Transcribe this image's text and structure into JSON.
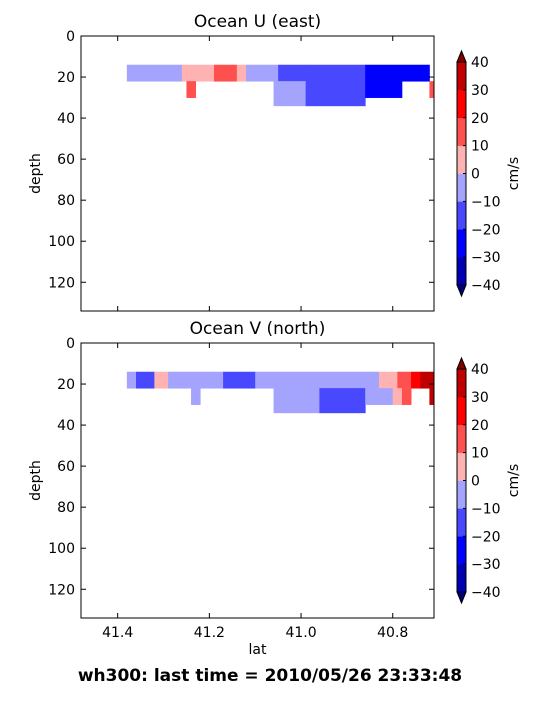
{
  "figure_title": "wh300: last time = 2010/05/26 23:33:48",
  "chart_data": [
    {
      "type": "heatmap",
      "title": "Ocean U (east)",
      "xlabel": "",
      "ylabel": "depth",
      "xlim": [
        41.48,
        40.71
      ],
      "ylim": [
        134,
        0
      ],
      "xticks": [],
      "yticks": [
        0,
        20,
        40,
        60,
        80,
        100,
        120
      ],
      "colorbar": {
        "label": "cm/s",
        "levels": [
          -40,
          -30,
          -20,
          -10,
          0,
          10,
          20,
          30,
          40
        ],
        "ticks": [
          40,
          30,
          20,
          10,
          0,
          -10,
          -20,
          -30,
          -40
        ],
        "colors": [
          "#0000b2",
          "#0000ff",
          "#4848ff",
          "#a4a4ff",
          "#ffb2b2",
          "#ff5050",
          "#ff0000",
          "#c00000"
        ],
        "extend": "both"
      },
      "cells": [
        {
          "x0": 41.38,
          "x1": 41.26,
          "d0": 14,
          "d1": 22,
          "level": 3
        },
        {
          "x0": 41.26,
          "x1": 41.19,
          "d0": 14,
          "d1": 22,
          "level": 4
        },
        {
          "x0": 41.19,
          "x1": 41.14,
          "d0": 14,
          "d1": 22,
          "level": 5
        },
        {
          "x0": 41.14,
          "x1": 41.12,
          "d0": 14,
          "d1": 22,
          "level": 4
        },
        {
          "x0": 41.12,
          "x1": 41.05,
          "d0": 14,
          "d1": 22,
          "level": 3
        },
        {
          "x0": 41.05,
          "x1": 40.99,
          "d0": 14,
          "d1": 22,
          "level": 2
        },
        {
          "x0": 40.99,
          "x1": 40.86,
          "d0": 14,
          "d1": 22,
          "level": 2
        },
        {
          "x0": 40.86,
          "x1": 40.72,
          "d0": 14,
          "d1": 22,
          "level": 1
        },
        {
          "x0": 41.25,
          "x1": 41.23,
          "d0": 22,
          "d1": 30,
          "level": 5
        },
        {
          "x0": 41.06,
          "x1": 40.99,
          "d0": 22,
          "d1": 34,
          "level": 3
        },
        {
          "x0": 40.99,
          "x1": 40.86,
          "d0": 22,
          "d1": 34,
          "level": 2
        },
        {
          "x0": 40.86,
          "x1": 40.78,
          "d0": 22,
          "d1": 30,
          "level": 1
        },
        {
          "x0": 40.72,
          "x1": 40.71,
          "d0": 22,
          "d1": 30,
          "level": 5
        }
      ]
    },
    {
      "type": "heatmap",
      "title": "Ocean V (north)",
      "xlabel": "lat",
      "ylabel": "depth",
      "xlim": [
        41.48,
        40.71
      ],
      "ylim": [
        134,
        0
      ],
      "xticks": [
        41.4,
        41.2,
        41.0,
        40.8
      ],
      "yticks": [
        0,
        20,
        40,
        60,
        80,
        100,
        120
      ],
      "colorbar": {
        "label": "cm/s",
        "levels": [
          -40,
          -30,
          -20,
          -10,
          0,
          10,
          20,
          30,
          40
        ],
        "ticks": [
          40,
          30,
          20,
          10,
          0,
          -10,
          -20,
          -30,
          -40
        ],
        "colors": [
          "#0000b2",
          "#0000ff",
          "#4848ff",
          "#a4a4ff",
          "#ffb2b2",
          "#ff5050",
          "#ff0000",
          "#c00000"
        ],
        "extend": "both"
      },
      "cells": [
        {
          "x0": 41.38,
          "x1": 41.36,
          "d0": 14,
          "d1": 22,
          "level": 3
        },
        {
          "x0": 41.36,
          "x1": 41.32,
          "d0": 14,
          "d1": 22,
          "level": 2
        },
        {
          "x0": 41.32,
          "x1": 41.29,
          "d0": 14,
          "d1": 22,
          "level": 4
        },
        {
          "x0": 41.29,
          "x1": 41.17,
          "d0": 14,
          "d1": 22,
          "level": 3
        },
        {
          "x0": 41.17,
          "x1": 41.1,
          "d0": 14,
          "d1": 22,
          "level": 2
        },
        {
          "x0": 41.1,
          "x1": 41.08,
          "d0": 14,
          "d1": 22,
          "level": 3
        },
        {
          "x0": 41.08,
          "x1": 40.83,
          "d0": 14,
          "d1": 22,
          "level": 3
        },
        {
          "x0": 40.83,
          "x1": 40.79,
          "d0": 14,
          "d1": 22,
          "level": 4
        },
        {
          "x0": 40.79,
          "x1": 40.76,
          "d0": 14,
          "d1": 22,
          "level": 5
        },
        {
          "x0": 40.76,
          "x1": 40.74,
          "d0": 14,
          "d1": 22,
          "level": 6
        },
        {
          "x0": 40.74,
          "x1": 40.71,
          "d0": 14,
          "d1": 22,
          "level": 7
        },
        {
          "x0": 41.24,
          "x1": 41.22,
          "d0": 22,
          "d1": 30,
          "level": 3
        },
        {
          "x0": 41.06,
          "x1": 41.03,
          "d0": 22,
          "d1": 34,
          "level": 3
        },
        {
          "x0": 41.03,
          "x1": 40.96,
          "d0": 22,
          "d1": 34,
          "level": 3
        },
        {
          "x0": 40.96,
          "x1": 40.86,
          "d0": 22,
          "d1": 34,
          "level": 2
        },
        {
          "x0": 40.86,
          "x1": 40.8,
          "d0": 22,
          "d1": 30,
          "level": 3
        },
        {
          "x0": 40.8,
          "x1": 40.78,
          "d0": 22,
          "d1": 30,
          "level": 4
        },
        {
          "x0": 40.78,
          "x1": 40.76,
          "d0": 22,
          "d1": 30,
          "level": 5
        },
        {
          "x0": 40.72,
          "x1": 40.71,
          "d0": 22,
          "d1": 30,
          "level": 7
        }
      ]
    }
  ]
}
